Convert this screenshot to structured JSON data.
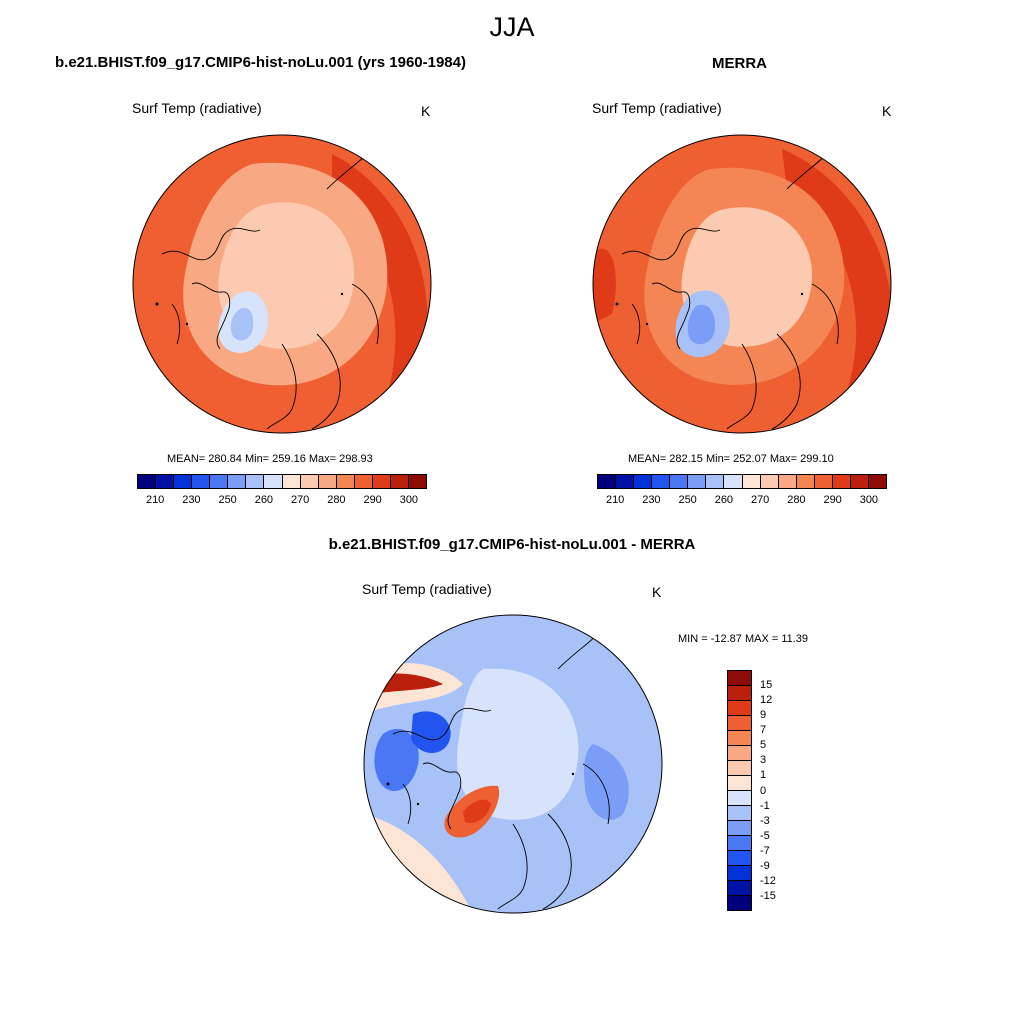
{
  "figure": {
    "title": "JJA"
  },
  "panels": {
    "model": {
      "title": "b.e21.BHIST.f09_g17.CMIP6-hist-noLu.001 (yrs 1960-1984)",
      "variable": "Surf Temp (radiative)",
      "units": "K",
      "stats": "MEAN= 280.84  Min= 259.16  Max= 298.93"
    },
    "obs": {
      "title": "MERRA",
      "variable": "Surf Temp (radiative)",
      "units": "K",
      "stats": "MEAN= 282.15  Min= 252.07  Max= 299.10"
    },
    "diff": {
      "title": "b.e21.BHIST.f09_g17.CMIP6-hist-noLu.001 - MERRA",
      "variable": "Surf Temp (radiative)",
      "units": "K",
      "stats": "MIN = -12.87 MAX =  11.39"
    }
  },
  "colorbars": {
    "abs": {
      "colors": [
        "#00007f",
        "#0012a6",
        "#0032d8",
        "#2255f0",
        "#4a78f5",
        "#7a9ef7",
        "#a8c2f8",
        "#d6e3fb",
        "#fde5d6",
        "#fbcab0",
        "#f8a882",
        "#f48656",
        "#ee5f31",
        "#e03b18",
        "#bb200c",
        "#8e0b06"
      ],
      "ticks": [
        "210",
        "230",
        "250",
        "260",
        "270",
        "280",
        "290",
        "300"
      ],
      "tick_positions": [
        1,
        3,
        5,
        7,
        9,
        11,
        13,
        15
      ]
    },
    "diff": {
      "colors": [
        "#8e0b06",
        "#bb200c",
        "#e03b18",
        "#ee5f31",
        "#f48656",
        "#f8a882",
        "#fbcab0",
        "#fde5d6",
        "#d6e3fb",
        "#a8c2f8",
        "#7a9ef7",
        "#4a78f5",
        "#2255f0",
        "#0032d8",
        "#0012a6",
        "#00007f"
      ],
      "ticks": [
        "15",
        "12",
        "9",
        "7",
        "5",
        "3",
        "1",
        "0",
        "-1",
        "-3",
        "-5",
        "-7",
        "-9",
        "-12",
        "-15"
      ]
    }
  },
  "map_colors": {
    "ocean_warm": "#ef5f32",
    "ocean_hot": "#e03b18",
    "arctic_mid": "#f8a882",
    "arctic_ice": "#fbcab0",
    "greenland": "#d6e3fb",
    "greenland_cold": "#a8c2f8",
    "diff_base": "#a8c2f8",
    "diff_arctic": "#d6e3fb",
    "diff_cold": "#4a78f5",
    "diff_warm": "#f48656",
    "diff_pos_light": "#fde5d6"
  }
}
